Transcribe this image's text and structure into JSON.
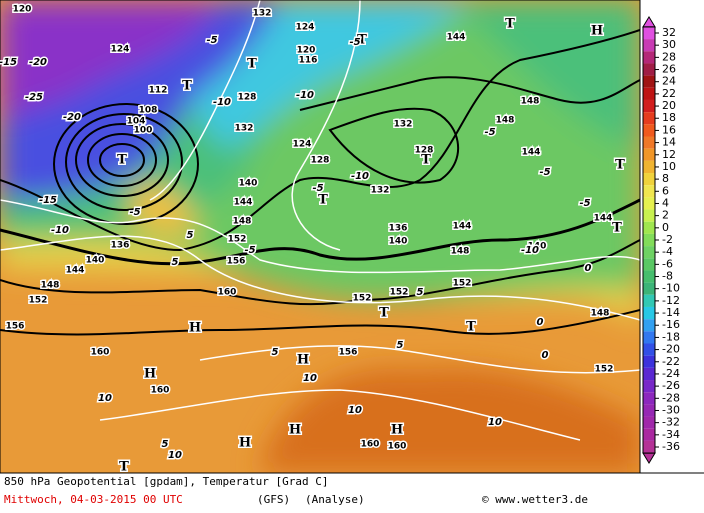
{
  "map": {
    "colorbar": {
      "ticks": [
        32,
        30,
        28,
        26,
        24,
        22,
        20,
        18,
        16,
        14,
        12,
        10,
        8,
        6,
        4,
        2,
        0,
        -2,
        -4,
        -6,
        -8,
        -10,
        -12,
        -14,
        -16,
        -18,
        -20,
        -22,
        -24,
        -26,
        -28,
        -30,
        -32,
        -34,
        -36
      ],
      "colors": [
        "#e050e0",
        "#c83cb4",
        "#b42878",
        "#a01e46",
        "#a01414",
        "#be1414",
        "#d21e1e",
        "#e63c1e",
        "#f05a1e",
        "#f07828",
        "#f09628",
        "#f0b432",
        "#f0d23c",
        "#f0e650",
        "#e6f050",
        "#c8f050",
        "#a0e650",
        "#82dc5a",
        "#6ed264",
        "#5ac864",
        "#46be6e",
        "#3cb478",
        "#32c8b4",
        "#28c8e6",
        "#32a0f0",
        "#3278f0",
        "#3250e6",
        "#3c32dc",
        "#5a28d2",
        "#7828c8",
        "#8c28be",
        "#9628b4",
        "#a028aa",
        "#aa28a0",
        "#b43296"
      ]
    },
    "centers": [
      "T",
      "T",
      "T",
      "H",
      "T",
      "T",
      "T",
      "T",
      "T",
      "T",
      "H",
      "H",
      "H",
      "H",
      "H",
      "H",
      "T",
      "T",
      "T"
    ],
    "geopotential_labels": [
      120,
      124,
      132,
      124,
      120,
      116,
      128,
      132,
      124,
      128,
      112,
      108,
      104,
      100,
      140,
      144,
      148,
      152,
      156,
      160,
      136,
      140,
      144,
      148,
      152,
      156,
      160,
      160,
      144,
      148,
      144,
      132,
      128,
      132,
      136,
      140,
      144,
      148,
      152,
      152,
      152,
      156,
      160,
      160,
      148,
      152,
      140,
      144,
      148
    ],
    "temperature_labels": [
      -15,
      -20,
      -25,
      -20,
      -15,
      -10,
      -5,
      -10,
      -5,
      -10,
      -5,
      -10,
      -5,
      -5,
      -5,
      -10,
      -5,
      -5,
      0,
      0,
      0,
      5,
      5,
      5,
      10,
      10,
      10,
      10,
      10,
      5,
      5,
      5
    ]
  },
  "footer": {
    "title": "850 hPa Geopotential [gpdam], Temperatur [Grad C]",
    "date": "Mittwoch, 04-03-2015  00 UTC",
    "model": "(GFS)",
    "run": "(Analyse)",
    "credit": "© www.wetter3.de"
  }
}
